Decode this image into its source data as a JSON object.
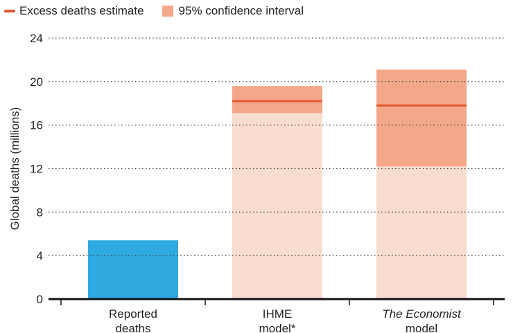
{
  "legend": {
    "estimate_label": "Excess deaths estimate",
    "ci_label": "95% confidence interval"
  },
  "colors": {
    "reported": "#2eaae1",
    "estimate_line": "#e4572e",
    "ci_dark": "#f4a88a",
    "ci_light": "#f9dcd0",
    "grid": "#444444",
    "axis": "#111111"
  },
  "chart_data": {
    "type": "bar",
    "ylabel": "Global deaths (millions)",
    "ylim": [
      0,
      24
    ],
    "yticks": [
      0,
      4,
      8,
      12,
      16,
      20,
      24
    ],
    "grid": "horizontal dotted",
    "legend_position": "top-left",
    "categories": [
      {
        "lines": [
          "Reported",
          "deaths"
        ],
        "italic": false
      },
      {
        "lines": [
          "IHME",
          "model*"
        ],
        "italic": false
      },
      {
        "lines": [
          "The Economist",
          "model"
        ],
        "italic": true,
        "italic_line": 0
      }
    ],
    "bars": [
      {
        "category": 0,
        "kind": "reported",
        "value": 5.4
      },
      {
        "category": 1,
        "kind": "estimate",
        "estimate": 18.2,
        "ci_low": 17.1,
        "ci_high": 19.6
      },
      {
        "category": 2,
        "kind": "estimate",
        "estimate": 17.8,
        "ci_low": 12.2,
        "ci_high": 21.1
      }
    ]
  }
}
